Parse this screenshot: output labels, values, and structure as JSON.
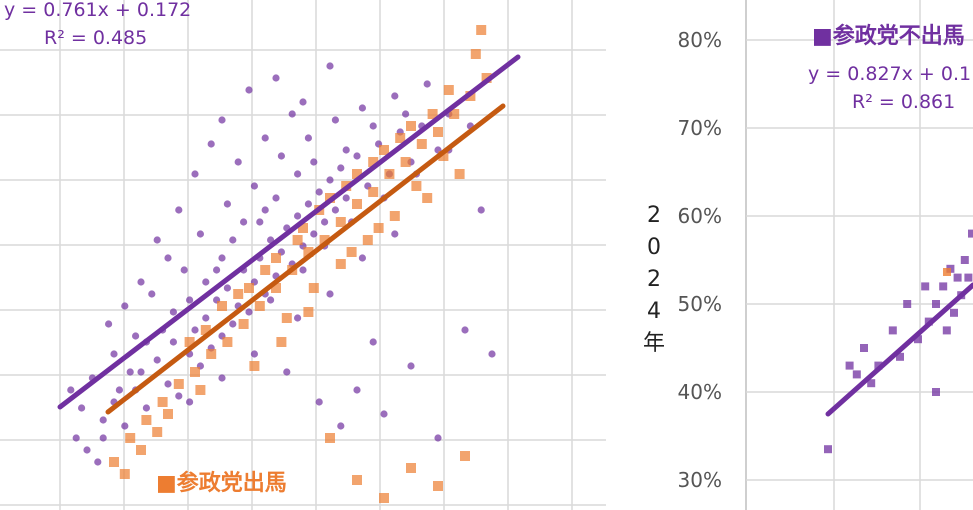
{
  "chart_data": [
    {
      "type": "scatter",
      "equation": "y = 0.761x + 0.172",
      "r_squared": "R² = 0.485",
      "series": [
        {
          "name": "",
          "color": "#7030A0",
          "marker": "circle",
          "trend": {
            "slope": 0.761,
            "intercept": 0.172
          }
        },
        {
          "name": "参政党出馬",
          "color": "#ED7D31",
          "marker": "square",
          "trend": {
            "slope": 0.65,
            "intercept": 0.15
          }
        }
      ],
      "legend_label": "■参政党出馬",
      "points_a": [
        [
          0.05,
          0.2
        ],
        [
          0.08,
          0.25
        ],
        [
          0.1,
          0.28
        ],
        [
          0.12,
          0.24
        ],
        [
          0.14,
          0.3
        ],
        [
          0.15,
          0.33
        ],
        [
          0.16,
          0.27
        ],
        [
          0.18,
          0.35
        ],
        [
          0.2,
          0.31
        ],
        [
          0.21,
          0.38
        ],
        [
          0.22,
          0.29
        ],
        [
          0.24,
          0.36
        ],
        [
          0.25,
          0.4
        ],
        [
          0.26,
          0.34
        ],
        [
          0.27,
          0.42
        ],
        [
          0.28,
          0.37
        ],
        [
          0.29,
          0.45
        ],
        [
          0.3,
          0.39
        ],
        [
          0.31,
          0.47
        ],
        [
          0.32,
          0.41
        ],
        [
          0.33,
          0.44
        ],
        [
          0.34,
          0.5
        ],
        [
          0.35,
          0.43
        ],
        [
          0.36,
          0.48
        ],
        [
          0.37,
          0.52
        ],
        [
          0.38,
          0.46
        ],
        [
          0.39,
          0.55
        ],
        [
          0.4,
          0.49
        ],
        [
          0.41,
          0.53
        ],
        [
          0.42,
          0.57
        ],
        [
          0.43,
          0.51
        ],
        [
          0.44,
          0.59
        ],
        [
          0.45,
          0.54
        ],
        [
          0.46,
          0.61
        ],
        [
          0.47,
          0.56
        ],
        [
          0.48,
          0.63
        ],
        [
          0.49,
          0.58
        ],
        [
          0.5,
          0.65
        ],
        [
          0.51,
          0.6
        ],
        [
          0.52,
          0.67
        ],
        [
          0.53,
          0.62
        ],
        [
          0.55,
          0.69
        ],
        [
          0.57,
          0.64
        ],
        [
          0.59,
          0.71
        ],
        [
          0.61,
          0.66
        ],
        [
          0.63,
          0.73
        ],
        [
          0.65,
          0.68
        ],
        [
          0.67,
          0.74
        ],
        [
          0.7,
          0.7
        ],
        [
          0.72,
          0.76
        ],
        [
          0.15,
          0.48
        ],
        [
          0.18,
          0.55
        ],
        [
          0.22,
          0.6
        ],
        [
          0.25,
          0.66
        ],
        [
          0.28,
          0.71
        ],
        [
          0.2,
          0.52
        ],
        [
          0.3,
          0.75
        ],
        [
          0.35,
          0.8
        ],
        [
          0.4,
          0.82
        ],
        [
          0.45,
          0.78
        ],
        [
          0.5,
          0.84
        ],
        [
          0.33,
          0.68
        ],
        [
          0.38,
          0.72
        ],
        [
          0.43,
          0.76
        ],
        [
          0.12,
          0.44
        ],
        [
          0.55,
          0.3
        ],
        [
          0.6,
          0.26
        ],
        [
          0.65,
          0.34
        ],
        [
          0.7,
          0.22
        ],
        [
          0.75,
          0.4
        ],
        [
          0.8,
          0.36
        ],
        [
          0.48,
          0.28
        ],
        [
          0.52,
          0.24
        ],
        [
          0.42,
          0.33
        ],
        [
          0.58,
          0.38
        ],
        [
          0.1,
          0.36
        ],
        [
          0.06,
          0.32
        ],
        [
          0.04,
          0.27
        ],
        [
          0.09,
          0.41
        ],
        [
          0.14,
          0.39
        ],
        [
          0.17,
          0.46
        ],
        [
          0.23,
          0.5
        ],
        [
          0.26,
          0.56
        ],
        [
          0.31,
          0.61
        ],
        [
          0.36,
          0.64
        ],
        [
          0.41,
          0.69
        ],
        [
          0.46,
          0.72
        ],
        [
          0.51,
          0.75
        ],
        [
          0.56,
          0.77
        ],
        [
          0.62,
          0.79
        ],
        [
          0.68,
          0.81
        ],
        [
          0.3,
          0.52
        ],
        [
          0.34,
          0.58
        ],
        [
          0.38,
          0.6
        ],
        [
          0.44,
          0.66
        ],
        [
          0.27,
          0.48
        ],
        [
          0.24,
          0.45
        ],
        [
          0.19,
          0.4
        ],
        [
          0.21,
          0.43
        ],
        [
          0.29,
          0.5
        ],
        [
          0.32,
          0.55
        ],
        [
          0.37,
          0.58
        ],
        [
          0.4,
          0.62
        ],
        [
          0.47,
          0.68
        ],
        [
          0.53,
          0.7
        ],
        [
          0.58,
          0.74
        ],
        [
          0.64,
          0.76
        ],
        [
          0.13,
          0.33
        ],
        [
          0.16,
          0.38
        ],
        [
          0.11,
          0.3
        ],
        [
          0.08,
          0.22
        ],
        [
          0.07,
          0.18
        ],
        [
          0.03,
          0.22
        ],
        [
          0.02,
          0.3
        ],
        [
          0.39,
          0.45
        ],
        [
          0.45,
          0.5
        ],
        [
          0.49,
          0.54
        ],
        [
          0.54,
          0.58
        ],
        [
          0.6,
          0.62
        ],
        [
          0.66,
          0.66
        ],
        [
          0.72,
          0.7
        ],
        [
          0.76,
          0.74
        ],
        [
          0.78,
          0.6
        ],
        [
          0.62,
          0.56
        ],
        [
          0.56,
          0.52
        ],
        [
          0.5,
          0.46
        ],
        [
          0.44,
          0.42
        ],
        [
          0.36,
          0.36
        ],
        [
          0.3,
          0.32
        ],
        [
          0.24,
          0.28
        ]
      ],
      "points_b": [
        [
          0.1,
          0.18
        ],
        [
          0.13,
          0.22
        ],
        [
          0.16,
          0.25
        ],
        [
          0.19,
          0.28
        ],
        [
          0.22,
          0.31
        ],
        [
          0.25,
          0.33
        ],
        [
          0.28,
          0.36
        ],
        [
          0.31,
          0.38
        ],
        [
          0.34,
          0.41
        ],
        [
          0.37,
          0.44
        ],
        [
          0.4,
          0.47
        ],
        [
          0.43,
          0.5
        ],
        [
          0.46,
          0.53
        ],
        [
          0.49,
          0.55
        ],
        [
          0.52,
          0.58
        ],
        [
          0.55,
          0.61
        ],
        [
          0.58,
          0.63
        ],
        [
          0.61,
          0.66
        ],
        [
          0.64,
          0.68
        ],
        [
          0.67,
          0.71
        ],
        [
          0.7,
          0.73
        ],
        [
          0.73,
          0.76
        ],
        [
          0.76,
          0.79
        ],
        [
          0.79,
          0.82
        ],
        [
          0.35,
          0.47
        ],
        [
          0.4,
          0.52
        ],
        [
          0.45,
          0.57
        ],
        [
          0.5,
          0.62
        ],
        [
          0.55,
          0.66
        ],
        [
          0.6,
          0.7
        ],
        [
          0.65,
          0.74
        ],
        [
          0.3,
          0.44
        ],
        [
          0.27,
          0.4
        ],
        [
          0.42,
          0.42
        ],
        [
          0.47,
          0.47
        ],
        [
          0.52,
          0.51
        ],
        [
          0.57,
          0.55
        ],
        [
          0.62,
          0.59
        ],
        [
          0.68,
          0.62
        ],
        [
          0.74,
          0.66
        ],
        [
          0.2,
          0.26
        ],
        [
          0.15,
          0.2
        ],
        [
          0.12,
          0.16
        ],
        [
          0.24,
          0.38
        ],
        [
          0.33,
          0.46
        ],
        [
          0.38,
          0.5
        ],
        [
          0.44,
          0.55
        ],
        [
          0.48,
          0.6
        ],
        [
          0.53,
          0.64
        ],
        [
          0.58,
          0.68
        ],
        [
          0.63,
          0.72
        ],
        [
          0.69,
          0.76
        ],
        [
          0.72,
          0.8
        ],
        [
          0.77,
          0.86
        ],
        [
          0.78,
          0.9
        ],
        [
          0.55,
          0.15
        ],
        [
          0.65,
          0.17
        ],
        [
          0.7,
          0.14
        ],
        [
          0.75,
          0.19
        ],
        [
          0.6,
          0.12
        ],
        [
          0.5,
          0.22
        ],
        [
          0.36,
          0.34
        ],
        [
          0.41,
          0.38
        ],
        [
          0.46,
          0.43
        ],
        [
          0.26,
          0.3
        ],
        [
          0.18,
          0.23
        ],
        [
          0.66,
          0.64
        ],
        [
          0.71,
          0.69
        ],
        [
          0.59,
          0.57
        ],
        [
          0.54,
          0.53
        ]
      ]
    },
    {
      "type": "scatter",
      "title": "■参政党不出馬",
      "equation": "y = 0.827x + 0.1",
      "r_squared": "R² = 0.861",
      "ylabel": "2024年",
      "yticks": [
        "30%",
        "40%",
        "50%",
        "60%",
        "70%",
        "80%"
      ],
      "series": [
        {
          "name": "参政党不出馬",
          "color": "#7030A0",
          "marker": "square",
          "trend": {
            "slope": 0.827,
            "intercept": 0.1
          }
        }
      ],
      "points": [
        [
          0.0,
          0.335
        ],
        [
          0.06,
          0.43
        ],
        [
          0.08,
          0.42
        ],
        [
          0.1,
          0.45
        ],
        [
          0.12,
          0.41
        ],
        [
          0.14,
          0.43
        ],
        [
          0.18,
          0.47
        ],
        [
          0.2,
          0.44
        ],
        [
          0.22,
          0.5
        ],
        [
          0.25,
          0.46
        ],
        [
          0.27,
          0.52
        ],
        [
          0.3,
          0.5
        ],
        [
          0.32,
          0.52
        ],
        [
          0.34,
          0.54
        ],
        [
          0.36,
          0.53
        ],
        [
          0.38,
          0.55
        ],
        [
          0.4,
          0.58
        ],
        [
          0.35,
          0.49
        ],
        [
          0.3,
          0.4
        ],
        [
          0.42,
          0.56
        ],
        [
          0.44,
          0.6
        ],
        [
          0.37,
          0.51
        ],
        [
          0.33,
          0.47
        ],
        [
          0.39,
          0.53
        ],
        [
          0.41,
          0.57
        ],
        [
          0.28,
          0.48
        ],
        [
          0.43,
          0.52
        ]
      ]
    }
  ]
}
